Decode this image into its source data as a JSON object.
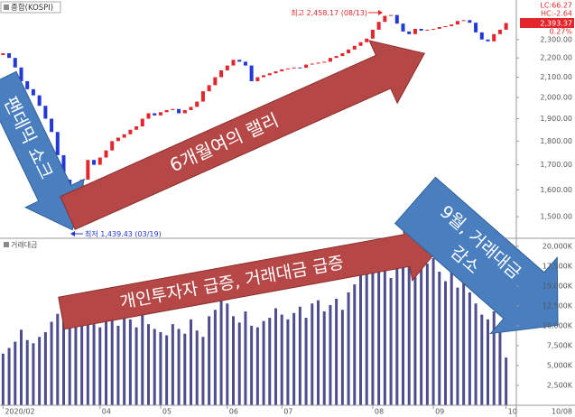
{
  "header": {
    "title": "종합(KOSPI)",
    "lc": "LC:66.27",
    "hc": "HC:-2.64",
    "change": "0.27%"
  },
  "chart_data": [
    {
      "type": "candlestick",
      "open": [
        2215,
        2225,
        2200,
        2150,
        2080,
        2040,
        2010,
        1960,
        1900,
        1840,
        1740,
        1640,
        1560,
        1470,
        1640,
        1720,
        1700,
        1730,
        1760,
        1800,
        1815,
        1830,
        1850,
        1865,
        1900,
        1925,
        1915,
        1930,
        1940,
        1945,
        1925,
        1940,
        1955,
        1980,
        2030,
        2060,
        2100,
        2135,
        2160,
        2190,
        2180,
        2160,
        2080,
        2100,
        2110,
        2120,
        2130,
        2140,
        2145,
        2150,
        2148,
        2165,
        2170,
        2175,
        2180,
        2200,
        2210,
        2225,
        2245,
        2265,
        2285,
        2305,
        2355,
        2400,
        2435,
        2440,
        2390,
        2345,
        2330,
        2360,
        2350,
        2355,
        2360,
        2370,
        2375,
        2385,
        2405,
        2410,
        2395,
        2340,
        2300,
        2290,
        2330,
        2355
      ],
      "close": [
        2225,
        2200,
        2150,
        2080,
        2040,
        2010,
        1960,
        1900,
        1840,
        1740,
        1640,
        1560,
        1460,
        1640,
        1720,
        1700,
        1730,
        1760,
        1800,
        1815,
        1830,
        1850,
        1865,
        1900,
        1925,
        1915,
        1930,
        1940,
        1945,
        1925,
        1940,
        1955,
        1980,
        2030,
        2060,
        2100,
        2135,
        2160,
        2190,
        2180,
        2160,
        2080,
        2100,
        2110,
        2120,
        2130,
        2140,
        2145,
        2150,
        2148,
        2165,
        2170,
        2175,
        2180,
        2200,
        2210,
        2225,
        2245,
        2265,
        2285,
        2305,
        2355,
        2400,
        2435,
        2440,
        2390,
        2345,
        2330,
        2360,
        2350,
        2355,
        2360,
        2370,
        2375,
        2385,
        2405,
        2410,
        2395,
        2340,
        2300,
        2290,
        2330,
        2355,
        2393.37
      ],
      "up_color": "#e3262b",
      "down_color": "#2238d8",
      "log_scale": true,
      "ylim": [
        1430,
        2530
      ],
      "yticks": [
        {
          "value": 1500,
          "label": "1,500.00"
        },
        {
          "value": 1600,
          "label": "1,600.00"
        },
        {
          "value": 1700,
          "label": "1,700.00"
        },
        {
          "value": 1800,
          "label": "1,800.00"
        },
        {
          "value": 1900,
          "label": "1,900.00"
        },
        {
          "value": 2000,
          "label": "2,000.00"
        },
        {
          "value": 2100,
          "label": "2,100.00"
        },
        {
          "value": 2200,
          "label": "2,200.00"
        },
        {
          "value": 2300,
          "label": "2,300.00"
        }
      ],
      "last_price": {
        "value": 2393.37,
        "label": "2,393.37"
      },
      "annotations": [
        "최저 1,439.43 (03/19)",
        "최고 2,458.17 (08/13)"
      ]
    },
    {
      "type": "bar",
      "title": "거래대금",
      "color": "#4d4d8f",
      "values": [
        6500,
        7200,
        8000,
        9500,
        8200,
        7800,
        8600,
        9200,
        10500,
        11500,
        12000,
        13000,
        12500,
        11800,
        10600,
        10200,
        9800,
        10500,
        11200,
        10000,
        12600,
        10800,
        9800,
        11500,
        10200,
        9600,
        9200,
        8800,
        10200,
        9600,
        9000,
        10800,
        9400,
        8600,
        11200,
        12000,
        13500,
        12800,
        11200,
        10400,
        11800,
        10000,
        9800,
        10600,
        11000,
        12200,
        11400,
        10800,
        11600,
        12400,
        11000,
        12800,
        13200,
        11800,
        12600,
        13400,
        12000,
        14200,
        15200,
        16500,
        17500,
        16800,
        18800,
        17200,
        16000,
        19200,
        18400,
        17600,
        16200,
        20500,
        17800,
        18500,
        16800,
        15600,
        17200,
        14800,
        15800,
        14200,
        12800,
        11400,
        10800,
        11800,
        9600,
        6000
      ],
      "ylim": [
        0,
        21000
      ],
      "yticks": [
        {
          "value": 2500,
          "label": "2,500K"
        },
        {
          "value": 5000,
          "label": "5,000K"
        },
        {
          "value": 7500,
          "label": "7,500K"
        },
        {
          "value": 10000,
          "label": "10,000K"
        },
        {
          "value": 12500,
          "label": "12,500K"
        },
        {
          "value": 15000,
          "label": "15,000K"
        },
        {
          "value": 17500,
          "label": "17,500K"
        },
        {
          "value": 20000,
          "label": "20,000K"
        }
      ],
      "xticks": [
        {
          "value": 0,
          "label": "2020/02"
        },
        {
          "value": 16,
          "label": "04"
        },
        {
          "value": 26,
          "label": "05"
        },
        {
          "value": 37,
          "label": "06"
        },
        {
          "value": 46,
          "label": "07"
        },
        {
          "value": 61,
          "label": "08"
        },
        {
          "value": 71,
          "label": "09"
        },
        {
          "value": 83,
          "label": "10"
        }
      ],
      "last_date": "10/08"
    }
  ],
  "callouts": [
    "팬데믹 쇼크",
    "6개월여의 랠리",
    "개인투자자 급증, 거래대금 급증",
    [
      "9월, 거래대금",
      "감소"
    ]
  ]
}
